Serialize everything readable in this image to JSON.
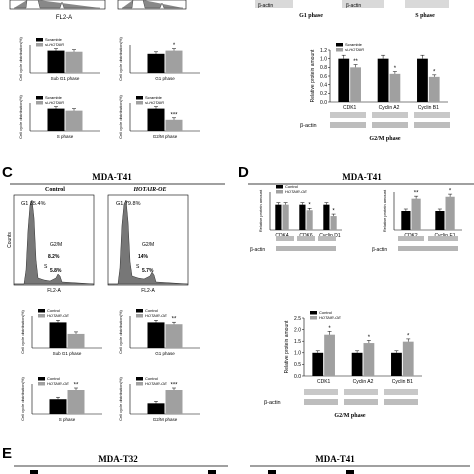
{
  "panels": {
    "C": {
      "letter": "C",
      "title": "MDA-T41"
    },
    "D": {
      "letter": "D",
      "title": "MDA-T41"
    },
    "E": {
      "letter": "E",
      "title": "MDA-T32"
    },
    "E2": {
      "title": "MDA-T41"
    }
  },
  "top_labels": {
    "fl2a": "FL2-A",
    "g1_phase": "G1 phase",
    "s_phase": "S phase",
    "g2m_phase": "G2/M phase",
    "beta_actin": "β-actin"
  },
  "flow": {
    "control": {
      "title": "Control",
      "g1_pct": "G1  85.4%",
      "s_pct": "8.2%",
      "g2m_pct": "5.8%",
      "xlabel": "FL2-A",
      "ylabel": "Counts"
    },
    "oe": {
      "title": "HOTAIR-OE",
      "g1_pct": "G1  79.8%",
      "s_pct": "14%",
      "g2m_pct": "5.7%",
      "xlabel": "FL2-A"
    },
    "g2m_label": "G2/M",
    "s_label": "S"
  },
  "colors": {
    "control": "#000000",
    "treatment": "#a0a0a0"
  },
  "chart_data": [
    {
      "type": "bar",
      "id": "B-subG1",
      "xlabel": "Sub G1 phase",
      "ylabel": "Cell cycle distribution(%)",
      "series": [
        {
          "name": "Scramble",
          "values": [
            1.0
          ]
        },
        {
          "name": "si-HOTAIR",
          "values": [
            0.95
          ]
        }
      ],
      "significance": ""
    },
    {
      "type": "bar",
      "id": "B-G1",
      "xlabel": "G1 phase",
      "ylabel": "Cell cycle distribution(%)",
      "series": [
        {
          "name": "Scramble",
          "values": [
            60
          ]
        },
        {
          "name": "si-HOTAIR",
          "values": [
            70
          ]
        }
      ],
      "significance": "*"
    },
    {
      "type": "bar",
      "id": "B-S",
      "xlabel": "S phase",
      "ylabel": "Cell cycle distribution(%)",
      "series": [
        {
          "name": "Scramble",
          "values": [
            22
          ]
        },
        {
          "name": "si-HOTAIR",
          "values": [
            20
          ]
        }
      ],
      "significance": ""
    },
    {
      "type": "bar",
      "id": "B-G2M",
      "xlabel": "G2/M phase",
      "ylabel": "Cell cycle distribution(%)",
      "series": [
        {
          "name": "Scramble",
          "values": [
            30
          ]
        },
        {
          "name": "si-HOTAIR",
          "values": [
            15
          ]
        }
      ],
      "significance": "***"
    },
    {
      "type": "bar",
      "id": "B-prot-G2M",
      "categories": [
        "CDK1",
        "Cyclin A2",
        "Cyclin B1"
      ],
      "ylabel": "Relative protein amount",
      "ylim": [
        0,
        1.2
      ],
      "yticks": [
        "0.0",
        "0.2",
        "0.4",
        "0.6",
        "0.8",
        "1.0",
        "1.2"
      ],
      "series": [
        {
          "name": "Scramble",
          "values": [
            1.0,
            1.0,
            1.0
          ]
        },
        {
          "name": "si-HOTAIR",
          "values": [
            0.8,
            0.65,
            0.58
          ]
        }
      ],
      "significance": [
        "**",
        "*",
        "*"
      ]
    },
    {
      "type": "bar",
      "id": "C-subG1",
      "xlabel": "Sub G1 phase",
      "ylabel": "Cell cycle distribution(%)",
      "series": [
        {
          "name": "Control",
          "values": [
            1.0
          ]
        },
        {
          "name": "HOTAIR-OE",
          "values": [
            0.55
          ]
        }
      ],
      "significance": ""
    },
    {
      "type": "bar",
      "id": "C-G1",
      "xlabel": "G1 phase",
      "ylabel": "Cell cycle distribution(%)",
      "series": [
        {
          "name": "Control",
          "values": [
            85
          ]
        },
        {
          "name": "HOTAIR-OE",
          "values": [
            79
          ]
        }
      ],
      "significance": "**"
    },
    {
      "type": "bar",
      "id": "C-S",
      "xlabel": "S phase",
      "ylabel": "Cell cycle distribution(%)",
      "series": [
        {
          "name": "Control",
          "values": [
            8
          ]
        },
        {
          "name": "HOTAIR-OE",
          "values": [
            13
          ]
        }
      ],
      "significance": "**"
    },
    {
      "type": "bar",
      "id": "C-G2M",
      "xlabel": "G2/M phase",
      "ylabel": "Cell cycle distribution(%)",
      "series": [
        {
          "name": "Control",
          "values": [
            4
          ]
        },
        {
          "name": "HOTAIR-OE",
          "values": [
            9
          ]
        }
      ],
      "significance": "***"
    },
    {
      "type": "bar",
      "id": "D-G1",
      "categories": [
        "CDK4",
        "CDK6",
        "Cyclin D1"
      ],
      "xlabel": "G1 phase",
      "ylabel": "Relative protein amount",
      "ylim": [
        0,
        1.5
      ],
      "series": [
        {
          "name": "Control",
          "values": [
            1.0,
            1.0,
            1.0
          ]
        },
        {
          "name": "HOTAIR-OE",
          "values": [
            1.0,
            0.78,
            0.55
          ]
        }
      ],
      "significance": [
        "",
        "*",
        "*"
      ]
    },
    {
      "type": "bar",
      "id": "D-S",
      "categories": [
        "CDK2",
        "Cyclin E1"
      ],
      "xlabel": "S phase",
      "ylabel": "Relative protein amount",
      "ylim": [
        0,
        2.0
      ],
      "series": [
        {
          "name": "Control",
          "values": [
            1.0,
            1.0
          ]
        },
        {
          "name": "HOTAIR-OE",
          "values": [
            1.65,
            1.75
          ]
        }
      ],
      "significance": [
        "**",
        "*"
      ]
    },
    {
      "type": "bar",
      "id": "D-G2M",
      "categories": [
        "CDK1",
        "Cyclin A2",
        "Cyclin B1"
      ],
      "xlabel": "G2/M phase",
      "ylabel": "Relative protein amount",
      "ylim": [
        0,
        2.5
      ],
      "yticks": [
        "0.0",
        "0.5",
        "1.0",
        "1.5",
        "2.0",
        "2.5"
      ],
      "series": [
        {
          "name": "Control",
          "values": [
            1.0,
            1.0,
            1.0
          ]
        },
        {
          "name": "HOTAIR-OE",
          "values": [
            1.78,
            1.42,
            1.48
          ]
        }
      ],
      "significance": [
        "*",
        "*",
        "*"
      ]
    }
  ]
}
